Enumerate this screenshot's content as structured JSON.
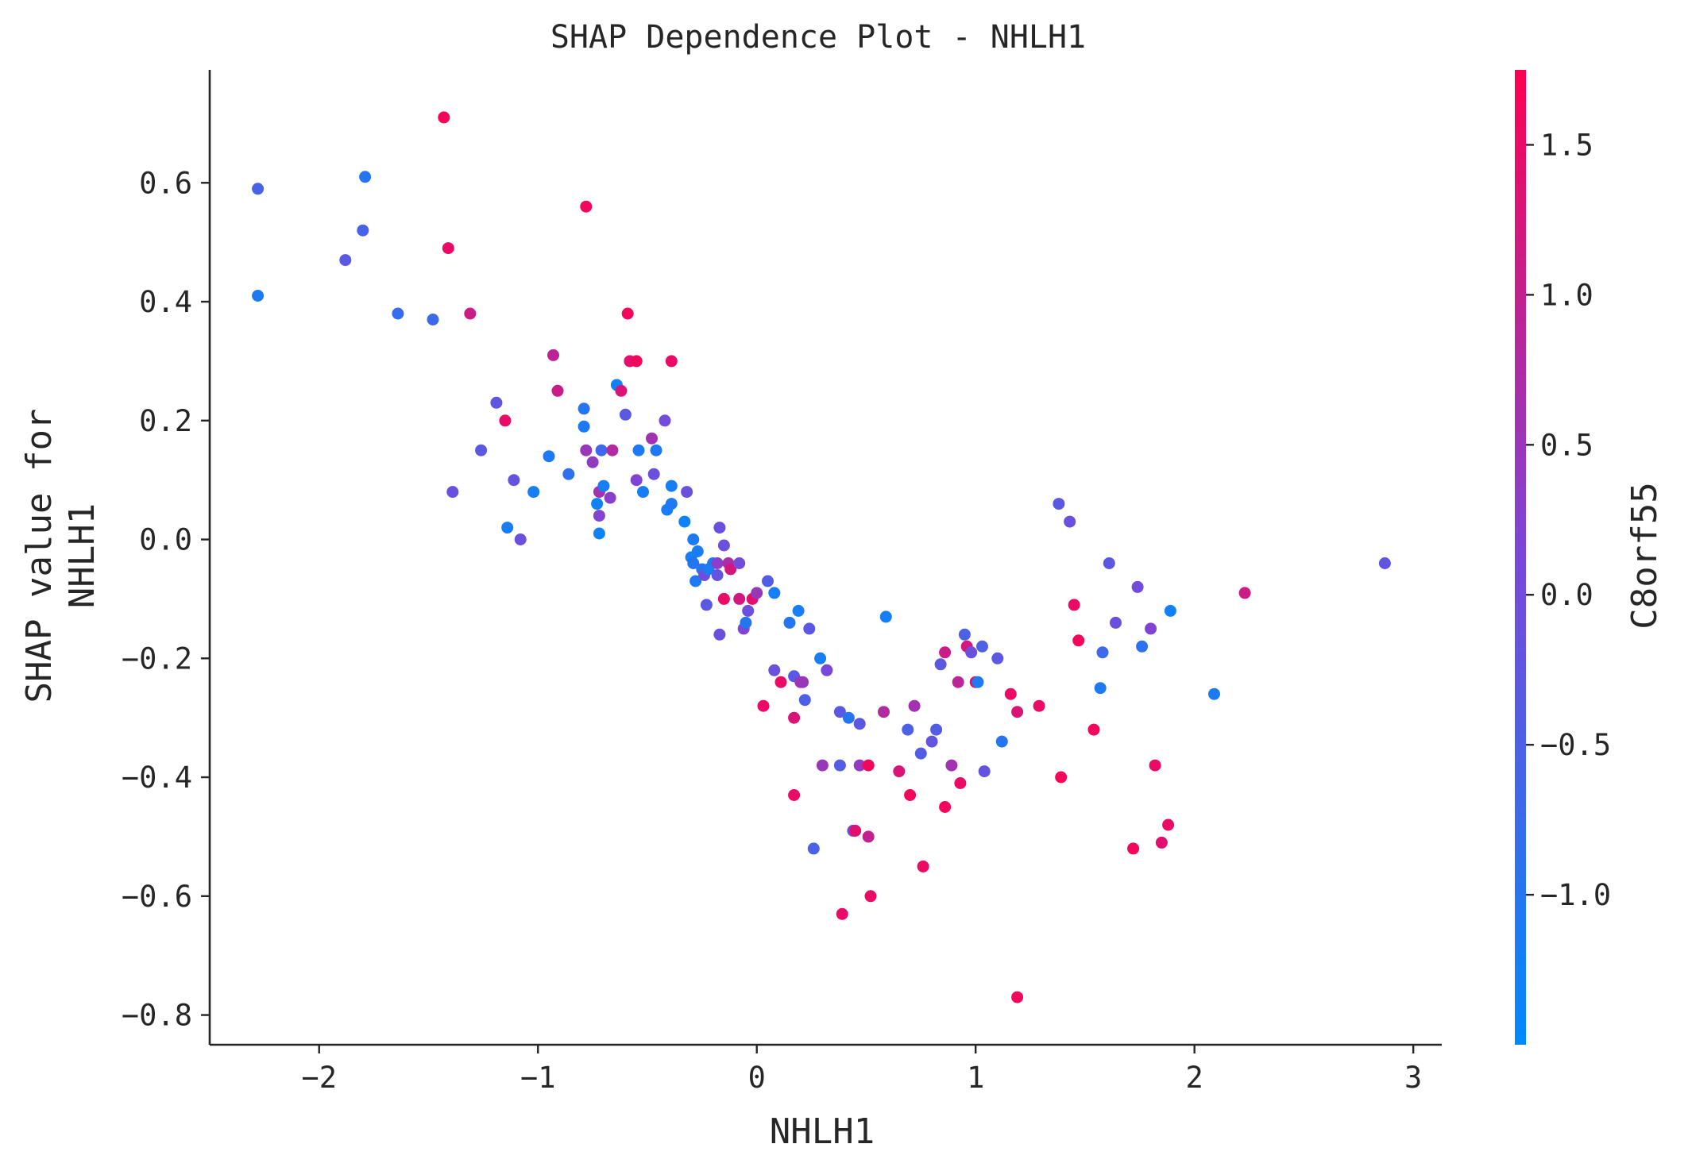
{
  "chart_data": {
    "type": "scatter",
    "title": "SHAP Dependence Plot - NHLH1",
    "xlabel": "NHLH1",
    "ylabel": [
      "SHAP value for",
      "NHLH1"
    ],
    "xlim": [
      -2.5,
      3.13
    ],
    "ylim": [
      -0.85,
      0.79
    ],
    "x_ticks": [
      -2,
      -1,
      0,
      1,
      2,
      3
    ],
    "x_tick_labels": [
      "−2",
      "−1",
      "0",
      "1",
      "2",
      "3"
    ],
    "y_ticks": [
      0.6,
      0.4,
      0.2,
      0.0,
      -0.2,
      -0.4,
      -0.6,
      -0.8
    ],
    "y_tick_labels": [
      "0.6",
      "0.4",
      "0.2",
      "0.0",
      "−0.2",
      "−0.4",
      "−0.6",
      "−0.8"
    ],
    "grid": false,
    "colorbar": {
      "label": "C8orf55",
      "range": [
        -1.5,
        1.75
      ],
      "ticks": [
        1.5,
        1.0,
        0.5,
        0.0,
        -0.5,
        -1.0
      ],
      "tick_labels": [
        "1.5",
        "1.0",
        "0.5",
        "0.0",
        "−0.5",
        "−1.0"
      ],
      "colors": [
        "#008afb",
        "#7b47d8",
        "#ff0051"
      ]
    },
    "points": [
      [
        -2.28,
        0.59,
        -0.55
      ],
      [
        -2.28,
        0.41,
        -1.1
      ],
      [
        -1.88,
        0.47,
        -0.3
      ],
      [
        -1.79,
        0.61,
        -1.0
      ],
      [
        -1.8,
        0.52,
        -0.55
      ],
      [
        -1.64,
        0.38,
        -0.8
      ],
      [
        -1.48,
        0.37,
        -0.7
      ],
      [
        -1.43,
        0.71,
        1.6
      ],
      [
        -1.41,
        0.49,
        1.5
      ],
      [
        -1.39,
        0.08,
        -0.1
      ],
      [
        -1.31,
        0.38,
        1.1
      ],
      [
        -1.26,
        0.15,
        -0.3
      ],
      [
        -1.19,
        0.23,
        -0.25
      ],
      [
        -1.15,
        0.2,
        1.5
      ],
      [
        -1.14,
        0.02,
        -1.2
      ],
      [
        -1.11,
        0.1,
        -0.2
      ],
      [
        -1.08,
        0.0,
        -0.1
      ],
      [
        -1.02,
        0.08,
        -1.2
      ],
      [
        -0.95,
        0.14,
        -1.1
      ],
      [
        -0.93,
        0.31,
        0.9
      ],
      [
        -0.91,
        0.25,
        1.1
      ],
      [
        -0.86,
        0.11,
        -0.9
      ],
      [
        -0.79,
        0.22,
        -1.0
      ],
      [
        -0.79,
        0.19,
        -1.1
      ],
      [
        -0.78,
        0.56,
        1.6
      ],
      [
        -0.78,
        0.15,
        0.5
      ],
      [
        -0.75,
        0.13,
        0.4
      ],
      [
        -0.73,
        0.06,
        -1.3
      ],
      [
        -0.72,
        0.01,
        -1.3
      ],
      [
        -0.72,
        0.04,
        0.2
      ],
      [
        -0.72,
        0.08,
        0.6
      ],
      [
        -0.71,
        0.15,
        -0.7
      ],
      [
        -0.7,
        0.09,
        -1.2
      ],
      [
        -0.67,
        0.07,
        0.3
      ],
      [
        -0.66,
        0.15,
        0.8
      ],
      [
        -0.64,
        0.26,
        -1.3
      ],
      [
        -0.62,
        0.25,
        1.3
      ],
      [
        -0.6,
        0.21,
        -0.3
      ],
      [
        -0.59,
        0.38,
        1.6
      ],
      [
        -0.58,
        0.3,
        1.4
      ],
      [
        -0.55,
        0.3,
        1.6
      ],
      [
        -0.55,
        0.1,
        0.2
      ],
      [
        -0.54,
        0.15,
        -1.1
      ],
      [
        -0.52,
        0.08,
        -1.2
      ],
      [
        -0.48,
        0.17,
        0.6
      ],
      [
        -0.47,
        0.11,
        -0.1
      ],
      [
        -0.46,
        0.15,
        -1.1
      ],
      [
        -0.42,
        0.2,
        0.0
      ],
      [
        -0.41,
        0.05,
        -1.2
      ],
      [
        -0.39,
        0.06,
        -1.1
      ],
      [
        -0.39,
        0.09,
        -1.2
      ],
      [
        -0.39,
        0.3,
        1.5
      ],
      [
        -0.33,
        0.03,
        -1.3
      ],
      [
        -0.32,
        0.08,
        -0.1
      ],
      [
        -0.3,
        -0.03,
        -1.2
      ],
      [
        -0.29,
        0.0,
        -1.1
      ],
      [
        -0.29,
        -0.04,
        -1.0
      ],
      [
        -0.28,
        -0.07,
        -1.1
      ],
      [
        -0.27,
        -0.02,
        -1.2
      ],
      [
        -0.25,
        -0.05,
        -1.0
      ],
      [
        -0.24,
        -0.06,
        0.0
      ],
      [
        -0.23,
        -0.11,
        -0.3
      ],
      [
        -0.22,
        -0.05,
        -1.2
      ],
      [
        -0.2,
        -0.04,
        -1.1
      ],
      [
        -0.18,
        -0.04,
        0.3
      ],
      [
        -0.18,
        -0.06,
        -0.2
      ],
      [
        -0.17,
        0.02,
        -0.1
      ],
      [
        -0.17,
        -0.16,
        -0.1
      ],
      [
        -0.15,
        -0.01,
        -0.1
      ],
      [
        -0.15,
        -0.1,
        1.5
      ],
      [
        -0.13,
        -0.04,
        0.7
      ],
      [
        -0.12,
        -0.05,
        1.2
      ],
      [
        -0.08,
        -0.04,
        0.0
      ],
      [
        -0.08,
        -0.1,
        1.2
      ],
      [
        -0.06,
        -0.15,
        0.2
      ],
      [
        -0.05,
        -0.14,
        -1.0
      ],
      [
        -0.04,
        -0.12,
        -0.1
      ],
      [
        -0.02,
        -0.1,
        1.4
      ],
      [
        0.0,
        -0.09,
        0.5
      ],
      [
        0.03,
        -0.28,
        1.5
      ],
      [
        0.05,
        -0.07,
        -0.4
      ],
      [
        0.08,
        -0.09,
        -1.2
      ],
      [
        0.08,
        -0.22,
        -0.1
      ],
      [
        0.11,
        -0.24,
        1.5
      ],
      [
        0.15,
        -0.14,
        -1.0
      ],
      [
        0.17,
        -0.43,
        1.5
      ],
      [
        0.17,
        -0.3,
        1.3
      ],
      [
        0.17,
        -0.23,
        -0.3
      ],
      [
        0.19,
        -0.12,
        -1.2
      ],
      [
        0.2,
        -0.24,
        0.6
      ],
      [
        0.21,
        -0.24,
        0.5
      ],
      [
        0.22,
        -0.27,
        -0.5
      ],
      [
        0.24,
        -0.15,
        -0.3
      ],
      [
        0.26,
        -0.52,
        -0.5
      ],
      [
        0.29,
        -0.2,
        -1.2
      ],
      [
        0.3,
        -0.38,
        0.5
      ],
      [
        0.32,
        -0.22,
        0.1
      ],
      [
        0.38,
        -0.29,
        -0.3
      ],
      [
        0.38,
        -0.38,
        -0.4
      ],
      [
        0.39,
        -0.63,
        1.5
      ],
      [
        0.42,
        -0.3,
        -1.0
      ],
      [
        0.44,
        -0.49,
        0.0
      ],
      [
        0.45,
        -0.49,
        1.4
      ],
      [
        0.47,
        -0.31,
        -0.3
      ],
      [
        0.47,
        -0.38,
        0.4
      ],
      [
        0.51,
        -0.38,
        1.6
      ],
      [
        0.51,
        -0.5,
        1.0
      ],
      [
        0.52,
        -0.6,
        1.5
      ],
      [
        0.58,
        -0.29,
        0.8
      ],
      [
        0.59,
        -0.13,
        -1.2
      ],
      [
        0.65,
        -0.39,
        1.3
      ],
      [
        0.69,
        -0.32,
        -0.5
      ],
      [
        0.7,
        -0.43,
        1.6
      ],
      [
        0.72,
        -0.28,
        0.6
      ],
      [
        0.75,
        -0.36,
        -0.4
      ],
      [
        0.76,
        -0.55,
        1.5
      ],
      [
        0.8,
        -0.34,
        -0.2
      ],
      [
        0.82,
        -0.32,
        -0.4
      ],
      [
        0.84,
        -0.21,
        -0.3
      ],
      [
        0.86,
        -0.19,
        1.1
      ],
      [
        0.86,
        -0.45,
        1.6
      ],
      [
        0.89,
        -0.38,
        0.6
      ],
      [
        0.92,
        -0.24,
        0.9
      ],
      [
        0.93,
        -0.41,
        1.5
      ],
      [
        0.95,
        -0.16,
        -0.5
      ],
      [
        0.96,
        -0.18,
        1.2
      ],
      [
        0.98,
        -0.19,
        -0.1
      ],
      [
        1.0,
        -0.24,
        1.5
      ],
      [
        1.01,
        -0.24,
        -1.1
      ],
      [
        1.03,
        -0.18,
        -0.5
      ],
      [
        1.04,
        -0.39,
        -0.2
      ],
      [
        1.1,
        -0.2,
        -0.3
      ],
      [
        1.12,
        -0.34,
        -1.0
      ],
      [
        1.16,
        -0.26,
        1.5
      ],
      [
        1.19,
        -0.77,
        1.6
      ],
      [
        1.19,
        -0.29,
        1.3
      ],
      [
        1.29,
        -0.28,
        1.5
      ],
      [
        1.38,
        0.06,
        -0.3
      ],
      [
        1.39,
        -0.4,
        1.6
      ],
      [
        1.43,
        0.03,
        -0.1
      ],
      [
        1.45,
        -0.11,
        1.5
      ],
      [
        1.47,
        -0.17,
        1.6
      ],
      [
        1.54,
        -0.32,
        1.6
      ],
      [
        1.57,
        -0.25,
        -1.1
      ],
      [
        1.58,
        -0.19,
        -0.7
      ],
      [
        1.61,
        -0.04,
        -0.3
      ],
      [
        1.64,
        -0.14,
        -0.1
      ],
      [
        1.72,
        -0.52,
        1.6
      ],
      [
        1.74,
        -0.08,
        0.0
      ],
      [
        1.76,
        -0.18,
        -0.9
      ],
      [
        1.8,
        -0.15,
        0.2
      ],
      [
        1.82,
        -0.38,
        1.5
      ],
      [
        1.85,
        -0.51,
        1.4
      ],
      [
        1.88,
        -0.48,
        1.5
      ],
      [
        1.89,
        -0.12,
        -1.3
      ],
      [
        2.09,
        -0.26,
        -1.1
      ],
      [
        2.23,
        -0.09,
        1.1
      ],
      [
        2.87,
        -0.04,
        -0.2
      ]
    ]
  }
}
